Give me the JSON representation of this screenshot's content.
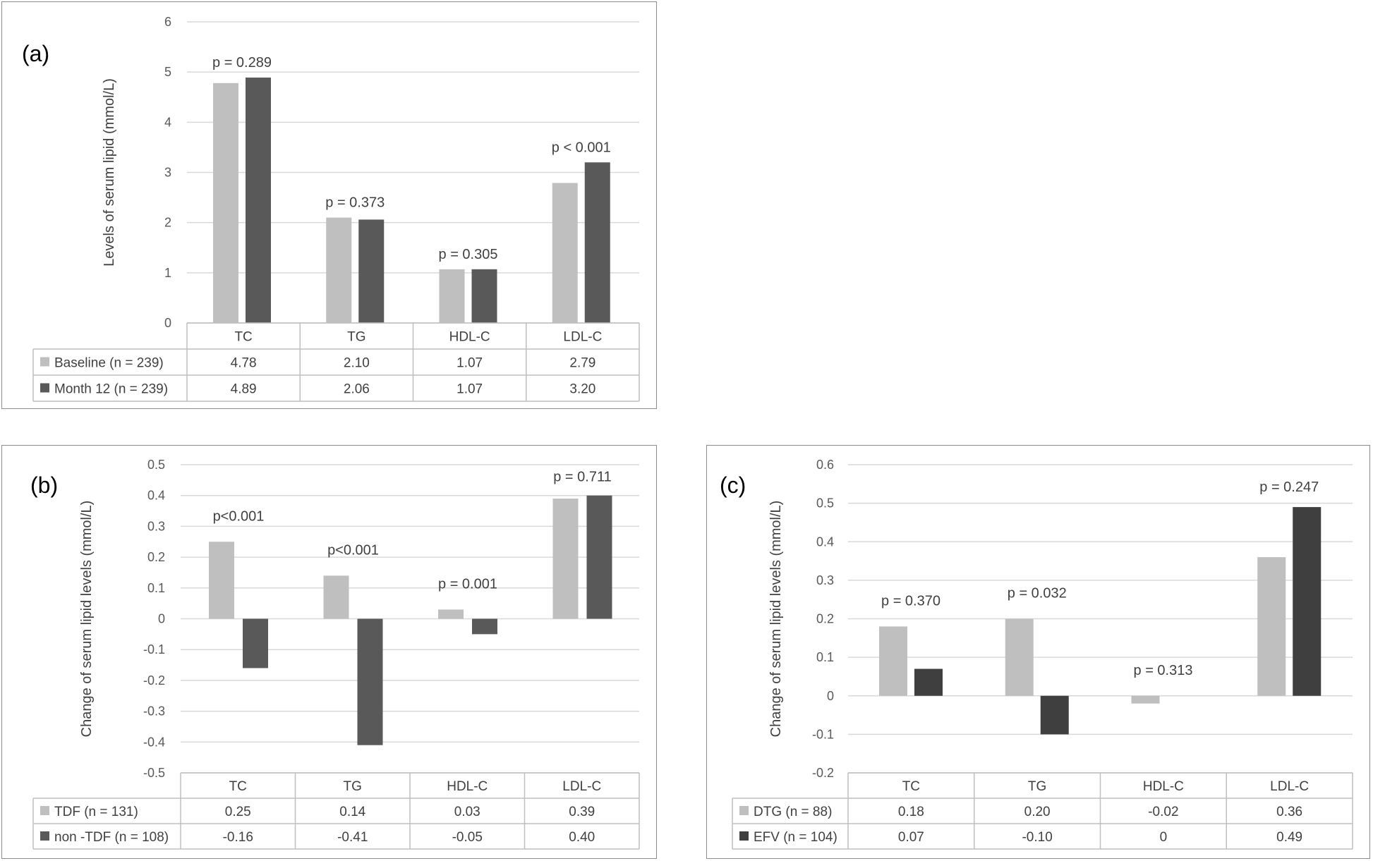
{
  "chart_data": [
    {
      "type": "bar",
      "panel_label": "(a)",
      "ylabel": "Levels of serum lipid (mmol/L)",
      "ylim": [
        0,
        6
      ],
      "yticks": [
        "0",
        "1",
        "2",
        "3",
        "4",
        "5",
        "6"
      ],
      "categories": [
        "TC",
        "TG",
        "HDL-C",
        "LDL-C"
      ],
      "p_values": [
        "p = 0.289",
        "p = 0.373",
        "p = 0.305",
        "p < 0.001"
      ],
      "series": [
        {
          "name": "Baseline (n = 239)",
          "color": "#bfbfbf",
          "values": [
            4.78,
            2.1,
            1.07,
            2.79
          ],
          "labels": [
            "4.78",
            "2.10",
            "1.07",
            "2.79"
          ]
        },
        {
          "name": "Month 12 (n = 239)",
          "color": "#595959",
          "values": [
            4.89,
            2.06,
            1.07,
            3.2
          ],
          "labels": [
            "4.89",
            "2.06",
            "1.07",
            "3.20"
          ]
        }
      ],
      "grid": true,
      "legend": "data-table"
    },
    {
      "type": "bar",
      "panel_label": "(b)",
      "ylabel": "Change of serum lipid levels  (mmol/L)",
      "ylim": [
        -0.5,
        0.5
      ],
      "yticks": [
        "-0.5",
        "-0.4",
        "-0.3",
        "-0.2",
        "-0.1",
        "0",
        "0.1",
        "0.2",
        "0.3",
        "0.4",
        "0.5"
      ],
      "categories": [
        "TC",
        "TG",
        "HDL-C",
        "LDL-C"
      ],
      "p_values": [
        "p<0.001",
        "p<0.001",
        "p = 0.001",
        "p = 0.711"
      ],
      "series": [
        {
          "name": "TDF (n = 131)",
          "color": "#bfbfbf",
          "values": [
            0.25,
            0.14,
            0.03,
            0.39
          ],
          "labels": [
            "0.25",
            "0.14",
            "0.03",
            "0.39"
          ]
        },
        {
          "name": "non -TDF (n = 108)",
          "color": "#595959",
          "values": [
            -0.16,
            -0.41,
            -0.05,
            0.4
          ],
          "labels": [
            "-0.16",
            "-0.41",
            "-0.05",
            "0.40"
          ]
        }
      ],
      "grid": true,
      "legend": "data-table"
    },
    {
      "type": "bar",
      "panel_label": "(c)",
      "ylabel": "Change of serum lipid levels (mmol/L)",
      "ylim": [
        -0.2,
        0.6
      ],
      "yticks": [
        "-0.2",
        "-0.1",
        "0",
        "0.1",
        "0.2",
        "0.3",
        "0.4",
        "0.5",
        "0.6"
      ],
      "categories": [
        "TC",
        "TG",
        "HDL-C",
        "LDL-C"
      ],
      "p_values": [
        "p = 0.370",
        "p = 0.032",
        "p = 0.313",
        "p = 0.247"
      ],
      "series": [
        {
          "name": "DTG (n = 88)",
          "color": "#bfbfbf",
          "values": [
            0.18,
            0.2,
            -0.02,
            0.36
          ],
          "labels": [
            "0.18",
            "0.20",
            "-0.02",
            "0.36"
          ]
        },
        {
          "name": "EFV (n = 104)",
          "color": "#3f3f3f",
          "values": [
            0.07,
            -0.1,
            0,
            0.49
          ],
          "labels": [
            "0.07",
            "-0.10",
            "0",
            "0.49"
          ]
        }
      ],
      "grid": true,
      "legend": "data-table"
    }
  ]
}
